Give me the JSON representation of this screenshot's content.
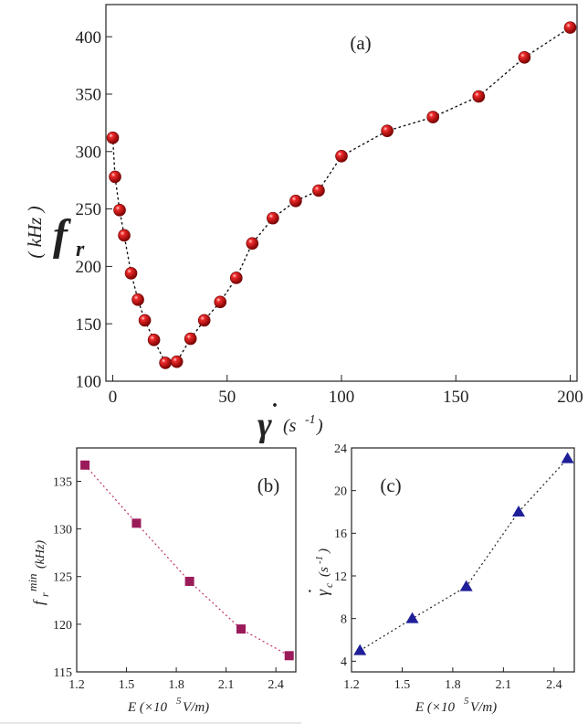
{
  "chart_data": [
    {
      "id": "a",
      "type": "line",
      "panel_label": "(a)",
      "ylabel_main": "f",
      "ylabel_sub": "r",
      "ylabel_unit": "( kHz )",
      "xlabel_symbol": "γ",
      "xlabel_unit": "(s",
      "xlabel_exp": "-1",
      "xlabel_close": ")",
      "xlim": [
        -3,
        203
      ],
      "ylim": [
        100,
        428
      ],
      "xticks": [
        0,
        50,
        100,
        150,
        200
      ],
      "yticks": [
        100,
        150,
        200,
        250,
        300,
        350,
        400
      ],
      "x": [
        0,
        1,
        3,
        5,
        8,
        11,
        14,
        18,
        23,
        28,
        34,
        40,
        47,
        54,
        61,
        70,
        80,
        90,
        100,
        120,
        140,
        160,
        180,
        200
      ],
      "y": [
        312,
        278,
        249,
        227,
        194,
        171,
        153,
        136,
        116,
        117,
        137,
        153,
        169,
        190,
        220,
        242,
        257,
        266,
        296,
        318,
        330,
        348,
        382,
        408
      ],
      "marker": "sphere",
      "color": "#cc1111"
    },
    {
      "id": "b",
      "type": "line",
      "panel_label": "(b)",
      "ylabel_main": "f",
      "ylabel_sub": "r",
      "ylabel_sup": "min",
      "ylabel_unit": "(kHz)",
      "xlabel": "E (×10",
      "xlabel_exp": "5",
      "xlabel_tail": " V/m)",
      "xlim": [
        1.2,
        2.52
      ],
      "ylim": [
        115,
        138.5
      ],
      "xticks": [
        "1.2",
        "1.5",
        "1.8",
        "2.1",
        "2.4"
      ],
      "yticks": [
        "115",
        "120",
        "125",
        "130",
        "135"
      ],
      "x": [
        1.25,
        1.56,
        1.88,
        2.19,
        2.48
      ],
      "y": [
        136.7,
        130.6,
        124.5,
        119.5,
        116.7
      ],
      "marker": "square",
      "color": "#9b1b5a"
    },
    {
      "id": "c",
      "type": "line",
      "panel_label": "(c)",
      "ylabel_main": "γ",
      "ylabel_sub": "c",
      "ylabel_unit": "(s",
      "ylabel_exp": "-1",
      "ylabel_close": ")",
      "xlabel": "E (×10",
      "xlabel_exp": "5",
      "xlabel_tail": " V/m)",
      "xlim": [
        1.2,
        2.52
      ],
      "ylim": [
        3,
        24
      ],
      "xticks": [
        "1.2",
        "1.5",
        "1.8",
        "2.1",
        "2.4"
      ],
      "yticks": [
        "4",
        "8",
        "12",
        "16",
        "20",
        "24"
      ],
      "x": [
        1.25,
        1.56,
        1.88,
        2.19,
        2.48
      ],
      "y": [
        5,
        8,
        11,
        18,
        23
      ],
      "marker": "triangle",
      "color": "#1f1f99"
    }
  ]
}
